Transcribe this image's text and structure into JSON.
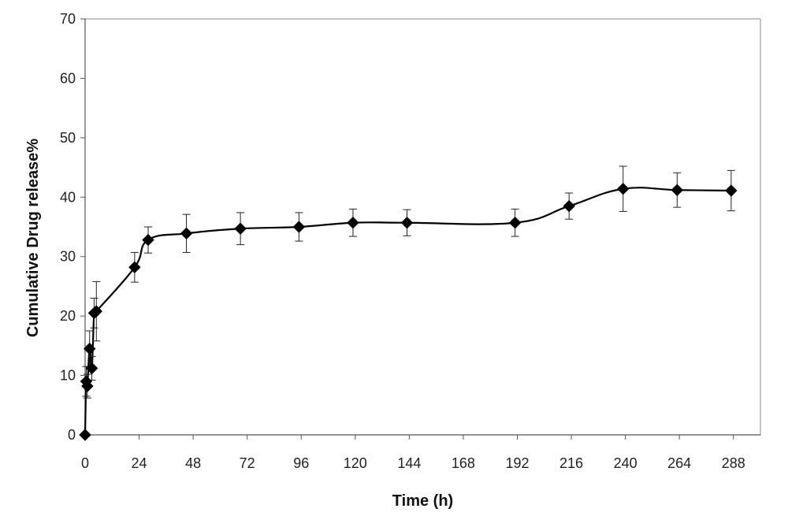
{
  "chart_data": {
    "type": "line",
    "title": "",
    "xlabel": "Time (h)",
    "ylabel": "Cumulative Drug release%",
    "xlim": [
      0,
      300
    ],
    "ylim": [
      0,
      70
    ],
    "x_ticks": [
      0,
      24,
      48,
      72,
      96,
      120,
      144,
      168,
      192,
      216,
      240,
      264,
      288
    ],
    "y_ticks": [
      0,
      10,
      20,
      30,
      40,
      50,
      60,
      70
    ],
    "grid": false,
    "legend": "none",
    "marker": "diamond",
    "line_style": "smooth",
    "series_color": "#000000",
    "series": [
      {
        "x": [
          0,
          0.5,
          1,
          2,
          3,
          4,
          5,
          22,
          28,
          45,
          69,
          95,
          119,
          143,
          191,
          215,
          239,
          263,
          287
        ],
        "y": [
          0,
          9,
          8.2,
          14.5,
          11.2,
          20.5,
          20.8,
          28.2,
          32.8,
          33.9,
          34.7,
          35.0,
          35.7,
          35.7,
          35.7,
          38.5,
          41.4,
          41.2,
          41.1
        ],
        "error": [
          0,
          2.5,
          2,
          3,
          2,
          2.5,
          5,
          2.5,
          2.2,
          3.2,
          2.7,
          2.4,
          2.3,
          2.2,
          2.3,
          2.2,
          3.8,
          2.9,
          3.4
        ]
      }
    ]
  }
}
